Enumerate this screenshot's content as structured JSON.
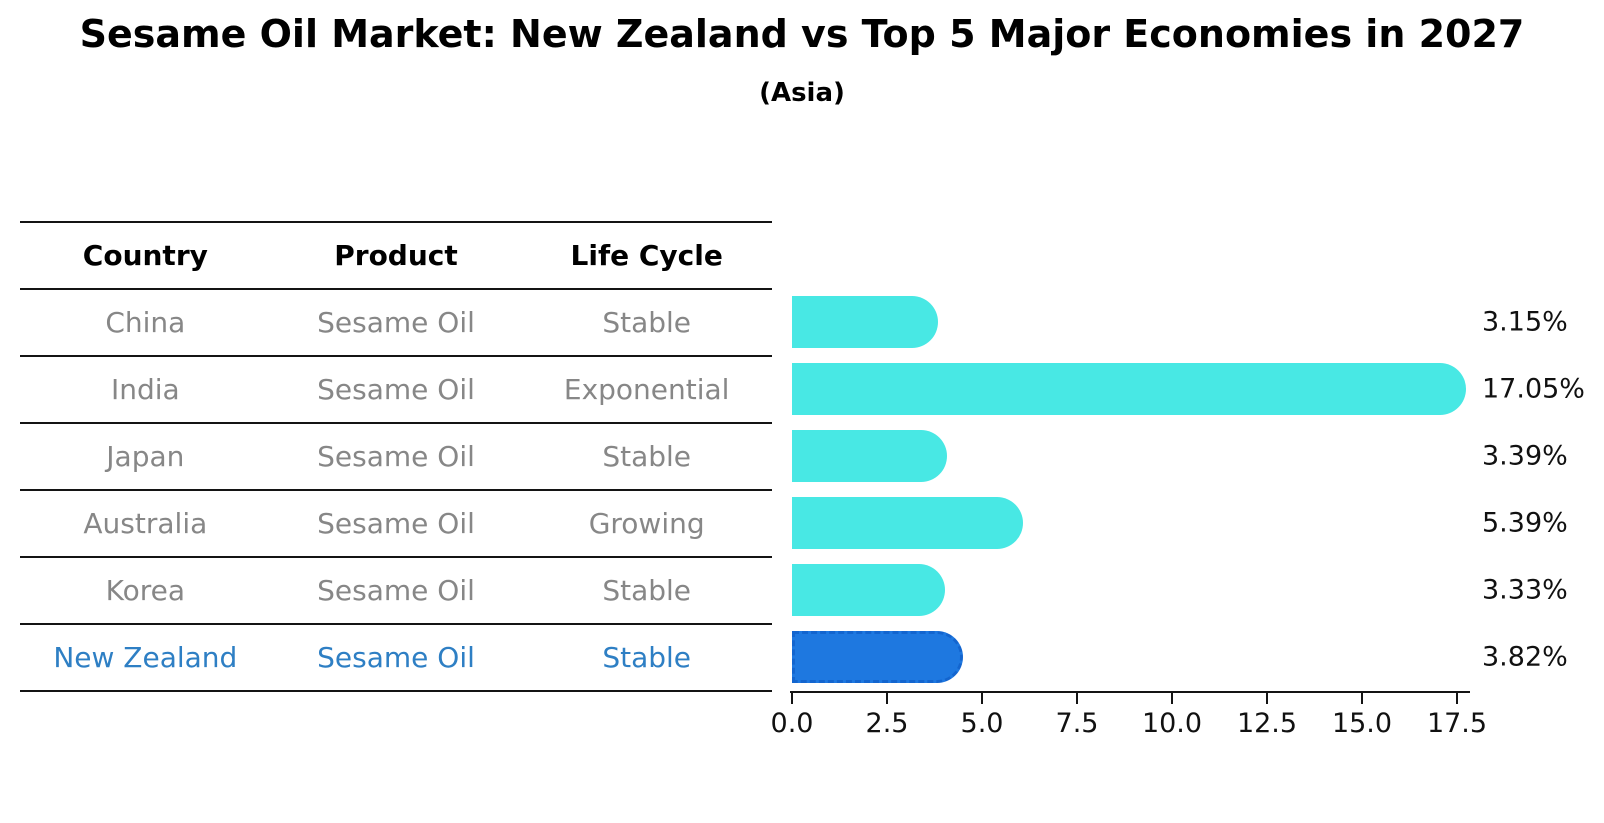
{
  "title": "Sesame Oil Market: New Zealand vs Top 5 Major Economies in 2027",
  "subtitle": "(Asia)",
  "table": {
    "headers": [
      "Country",
      "Product",
      "Life Cycle"
    ],
    "rows": [
      {
        "country": "China",
        "product": "Sesame Oil",
        "life_cycle": "Stable",
        "highlighted": false
      },
      {
        "country": "India",
        "product": "Sesame Oil",
        "life_cycle": "Exponential",
        "highlighted": false
      },
      {
        "country": "Japan",
        "product": "Sesame Oil",
        "life_cycle": "Stable",
        "highlighted": false
      },
      {
        "country": "Australia",
        "product": "Sesame Oil",
        "life_cycle": "Growing",
        "highlighted": false
      },
      {
        "country": "Korea",
        "product": "Sesame Oil",
        "life_cycle": "Stable",
        "highlighted": false
      },
      {
        "country": "New Zealand",
        "product": "Sesame Oil",
        "life_cycle": "Stable",
        "highlighted": true
      }
    ]
  },
  "chart_data": {
    "type": "bar",
    "orientation": "horizontal",
    "title": "Sesame Oil Market: New Zealand vs Top 5 Major Economies in 2027",
    "subtitle": "(Asia)",
    "categories": [
      "China",
      "India",
      "Japan",
      "Australia",
      "Korea",
      "New Zealand"
    ],
    "values": [
      3.15,
      17.05,
      3.39,
      5.39,
      3.33,
      3.82
    ],
    "value_labels": [
      "3.15%",
      "17.05%",
      "3.39%",
      "5.39%",
      "3.33%",
      "3.82%"
    ],
    "x_ticks": [
      0.0,
      2.5,
      5.0,
      7.5,
      10.0,
      12.5,
      15.0,
      17.5
    ],
    "x_tick_labels": [
      "0.0",
      "2.5",
      "5.0",
      "7.5",
      "10.0",
      "12.5",
      "15.0",
      "17.5"
    ],
    "xlim": [
      0,
      17.5
    ],
    "grid": false,
    "legend": false,
    "bar_color": "#48e8e4",
    "highlight_color": "#1e78e0",
    "highlight_border_color": "#1365cf",
    "highlight_index": 5,
    "highlight_style": "dashed-border"
  },
  "colors": {
    "row_text": "#878787",
    "highlight_text": "#2e7fc4",
    "header_text": "#000000",
    "axis": "#141414",
    "value_text": "#111111"
  }
}
